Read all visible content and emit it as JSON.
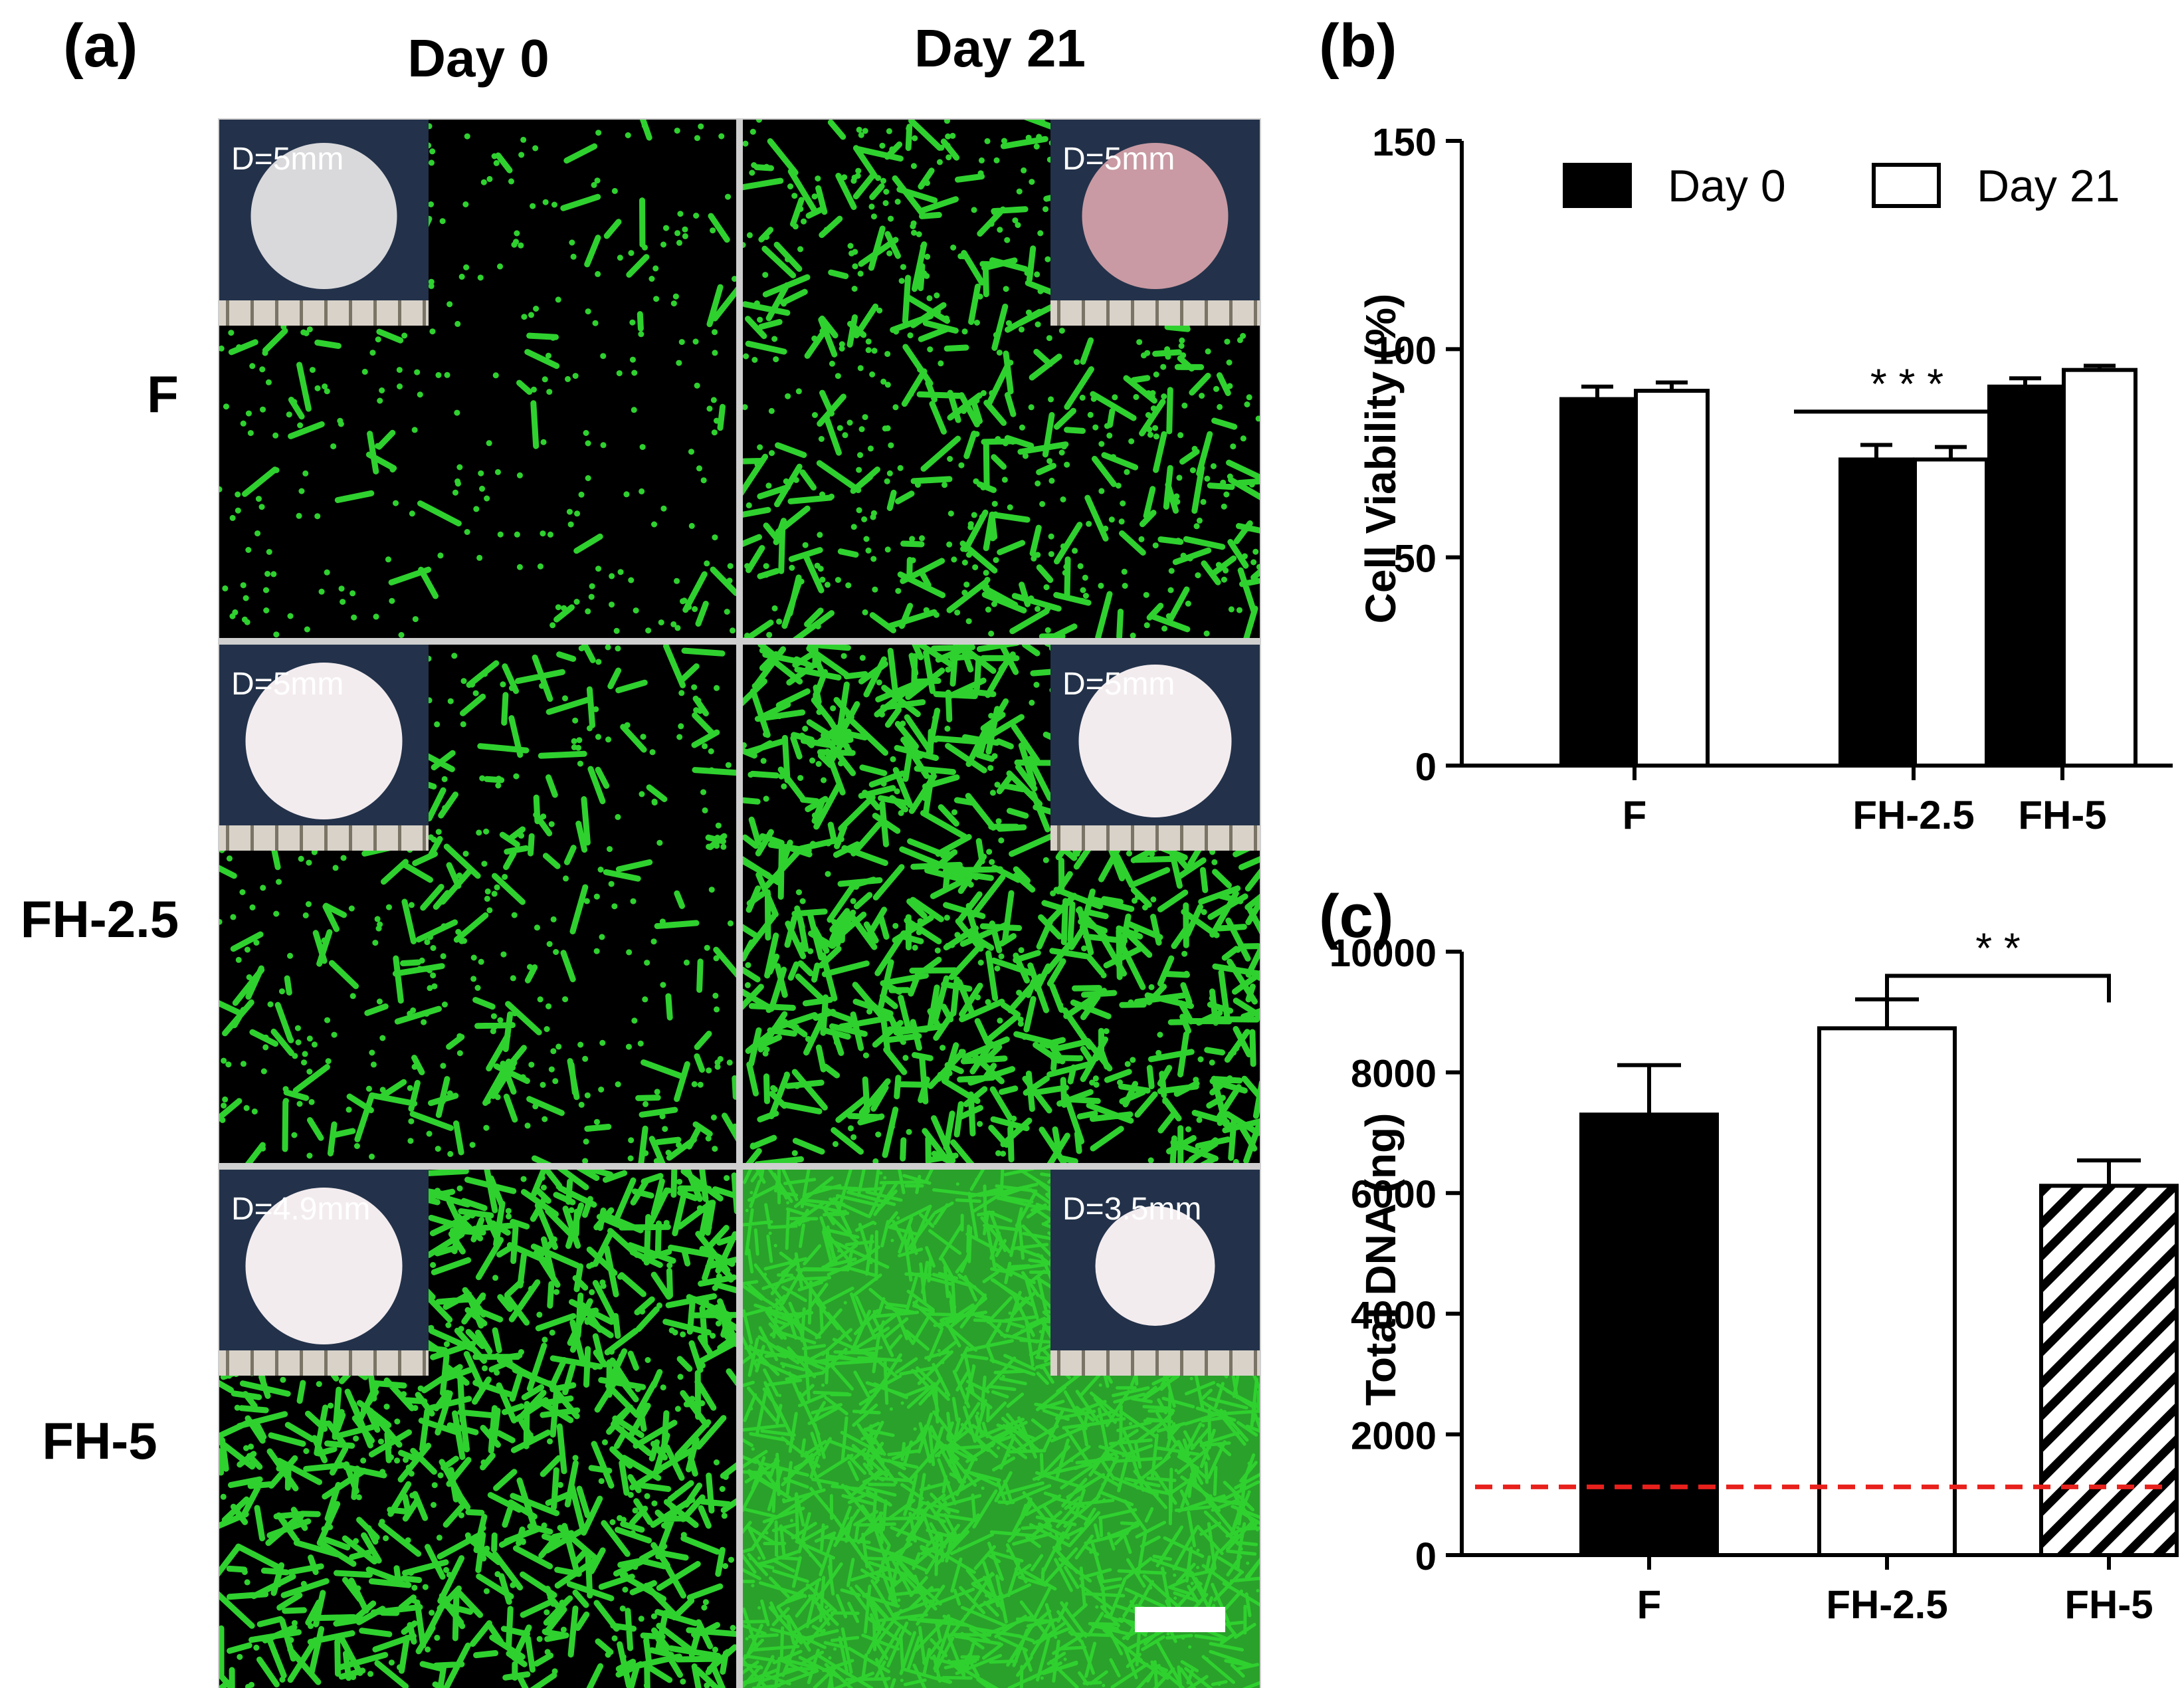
{
  "panel_a": {
    "label": "(a)",
    "col_labels": [
      "Day 0",
      "Day 21"
    ],
    "row_labels": [
      "F",
      "FH-2.5",
      "FH-5"
    ],
    "insets": [
      [
        "D=5mm",
        "D=5mm"
      ],
      [
        "D=5mm",
        "D=5mm"
      ],
      [
        "D=4.9mm",
        "D=3.5mm"
      ]
    ],
    "colors": {
      "background": "#000000",
      "live_cells": "#2fd12f",
      "inset_bg": "#23324a",
      "disc_day0": "#d9d9dc",
      "disc_f_day21": "#c99aa3",
      "disc_white": "#f3ecef"
    }
  },
  "panel_b": {
    "label": "(b)",
    "chart_data": {
      "type": "bar",
      "categories": [
        "F",
        "FH-2.5",
        "FH-5"
      ],
      "series": [
        {
          "name": "Day 0",
          "values": [
            88,
            73.5,
            91
          ],
          "errors": [
            3,
            3.5,
            2
          ],
          "fill": "#000000"
        },
        {
          "name": "Day 21",
          "values": [
            90,
            73.5,
            95
          ],
          "errors": [
            2,
            3,
            1
          ],
          "fill": "#ffffff"
        }
      ],
      "ylabel": "Cell Viability (%)",
      "ylim": [
        0,
        150
      ],
      "yticks": [
        0,
        50,
        100,
        150
      ],
      "legend": "top-right",
      "significance": {
        "label": "* * *",
        "category": "FH-2.5",
        "y": 85
      }
    }
  },
  "panel_c": {
    "label": "(c)",
    "chart_data": {
      "type": "bar",
      "categories": [
        "F",
        "FH-2.5",
        "FH-5"
      ],
      "values": [
        7300,
        8730,
        6120
      ],
      "errors": [
        820,
        480,
        420
      ],
      "fills": [
        "solid-black",
        "white",
        "hatched"
      ],
      "ylabel": "Total DNA (ng)",
      "ylim": [
        0,
        10000
      ],
      "yticks": [
        0,
        2000,
        4000,
        6000,
        8000,
        10000
      ],
      "baseline": 1130,
      "baseline_color": "#e8201c",
      "significance": {
        "label": "* *",
        "from": "FH-2.5",
        "to": "FH-5",
        "y": 9600
      }
    }
  }
}
